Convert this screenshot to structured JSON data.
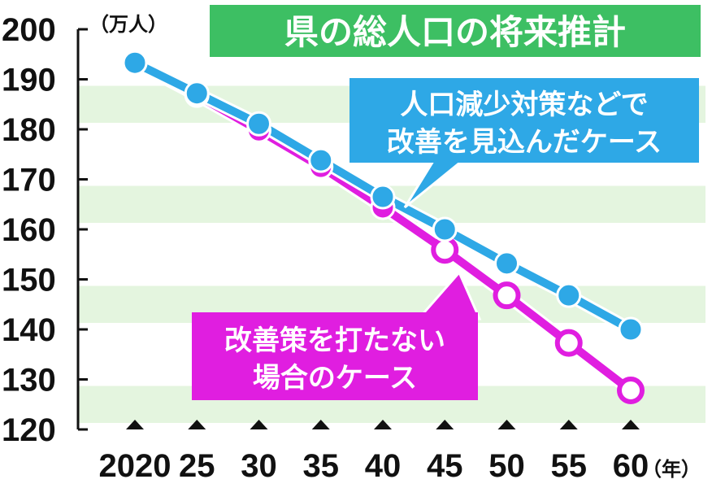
{
  "chart_data": {
    "type": "line",
    "title": "県の総人口の将来推計",
    "y_unit_label": "（万人）",
    "x_unit_label": "（年）",
    "categories": [
      "2020",
      "25",
      "30",
      "35",
      "40",
      "45",
      "50",
      "55",
      "60"
    ],
    "ylim": [
      120,
      200
    ],
    "yticks": [
      "120",
      "130",
      "140",
      "150",
      "160",
      "170",
      "180",
      "190",
      "200"
    ],
    "grid": true,
    "series": [
      {
        "name": "人口減少対策などで改善を見込んだケース",
        "name_lines": [
          "人口減少対策などで",
          "改善を見込んだケース"
        ],
        "color": "#2ea8e6",
        "values": [
          193.3,
          187.2,
          181.1,
          173.8,
          166.5,
          160.0,
          153.2,
          146.8,
          140.0
        ]
      },
      {
        "name": "改善策を打たない場合のケース",
        "name_lines": [
          "改善策を打たない",
          "場合のケース"
        ],
        "color": "#e01ee0",
        "values": [
          193.3,
          186.8,
          179.8,
          172.5,
          164.4,
          155.9,
          146.8,
          137.3,
          127.8
        ]
      }
    ]
  },
  "colors": {
    "title_bg": "#3dbf63",
    "stripe": "#e4f5df",
    "axis": "#111111"
  }
}
